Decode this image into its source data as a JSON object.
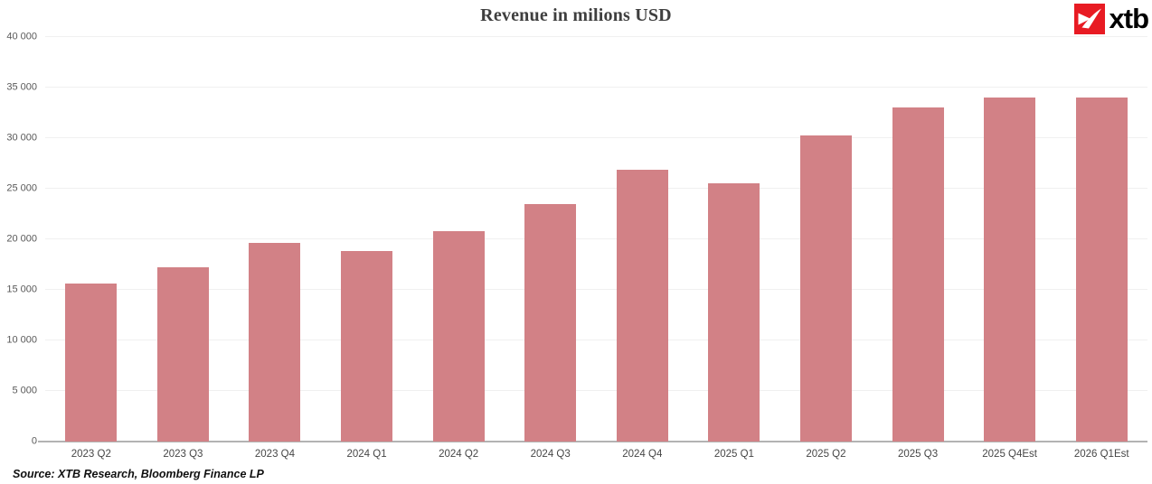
{
  "page": {
    "title": "Revenue in milions USD",
    "source_note": "Source: XTB Research, Bloomberg Finance LP",
    "logo": {
      "text": "xtb",
      "square_color": "#e81b23",
      "mark_color": "#ffffff",
      "text_color": "#000000"
    }
  },
  "colors": {
    "bar": "#d28186",
    "gridline": "#f0f0f0",
    "axis_line": "#b3b3b3",
    "title_text": "#3f3f3f",
    "tick_text": "#595959"
  },
  "chart_data": {
    "type": "bar",
    "title": "Revenue in milions USD",
    "xlabel": "",
    "ylabel": "",
    "categories": [
      "2023 Q2",
      "2023 Q3",
      "2023 Q4",
      "2024 Q1",
      "2024 Q2",
      "2024 Q3",
      "2024 Q4",
      "2025 Q1",
      "2025 Q2",
      "2025 Q3",
      "2025 Q4Est",
      "2026 Q1Est"
    ],
    "values": [
      15600,
      17250,
      19650,
      18850,
      20800,
      23450,
      26900,
      25550,
      30300,
      33050,
      34000,
      34000
    ],
    "ylim": [
      0,
      40000
    ],
    "ytick_step": 5000,
    "ytick_labels": [
      "0",
      "5 000",
      "10 000",
      "15 000",
      "20 000",
      "25 000",
      "30 000",
      "35 000",
      "40 000"
    ],
    "grid": true,
    "legend": false,
    "bar_color": "#d28186"
  }
}
